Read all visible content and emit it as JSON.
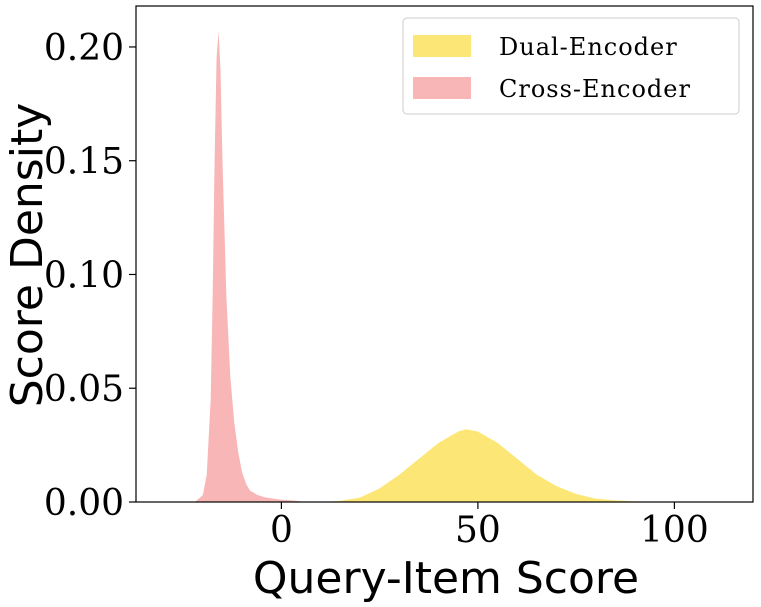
{
  "chart_data": {
    "type": "area",
    "title": "",
    "xlabel": "Query-Item Score",
    "ylabel": "Score Density",
    "xlim": [
      -37,
      120
    ],
    "ylim": [
      0,
      0.218
    ],
    "x_ticks": [
      0,
      50,
      100
    ],
    "x_tick_labels": [
      "0",
      "50",
      "100"
    ],
    "y_ticks": [
      0.0,
      0.05,
      0.1,
      0.15,
      0.2
    ],
    "y_tick_labels": [
      "0.00",
      "0.05",
      "0.10",
      "0.15",
      "0.20"
    ],
    "grid": false,
    "legend_position": "top-right",
    "series": [
      {
        "name": "Dual-Encoder",
        "color": "#fce35e",
        "x": [
          10,
          15,
          20,
          25,
          30,
          35,
          40,
          45,
          47,
          50,
          55,
          60,
          65,
          70,
          75,
          80,
          85,
          90,
          95,
          100,
          105,
          110
        ],
        "y": [
          0.0,
          0.0005,
          0.002,
          0.006,
          0.012,
          0.019,
          0.026,
          0.031,
          0.032,
          0.031,
          0.026,
          0.019,
          0.012,
          0.007,
          0.0035,
          0.0015,
          0.0007,
          0.0003,
          0.0001,
          5e-05,
          0.0,
          0.0
        ]
      },
      {
        "name": "Cross-Encoder",
        "color": "#f7a9a9",
        "x": [
          -22,
          -20,
          -19,
          -18,
          -17.5,
          -17,
          -16.5,
          -16,
          -15.5,
          -15,
          -14,
          -13,
          -12,
          -11,
          -10,
          -9,
          -8,
          -6,
          -4,
          -2,
          0,
          2,
          4,
          6
        ],
        "y": [
          0.0,
          0.003,
          0.012,
          0.045,
          0.09,
          0.15,
          0.195,
          0.207,
          0.19,
          0.15,
          0.09,
          0.055,
          0.035,
          0.022,
          0.013,
          0.008,
          0.005,
          0.003,
          0.002,
          0.0015,
          0.001,
          0.0008,
          0.0005,
          0.0
        ]
      }
    ]
  }
}
